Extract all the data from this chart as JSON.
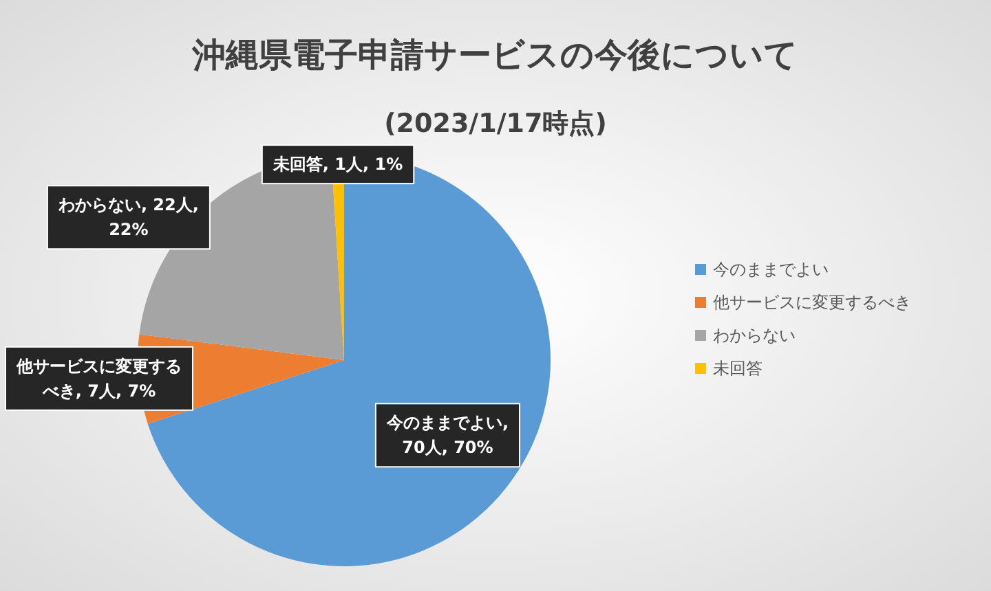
{
  "chart_data": {
    "type": "pie",
    "title": "沖縄県電子申請サービスの今後について",
    "subtitle": "(2023/1/17時点)",
    "categories": [
      "今のままでよい",
      "他サービスに変更するべき",
      "わからない",
      "未回答"
    ],
    "values": [
      70,
      7,
      22,
      1
    ],
    "colors": [
      "#5b9bd5",
      "#ed7d31",
      "#a5a5a5",
      "#ffc000"
    ],
    "value_labels": [
      "今のままでよい, 70人, 70%",
      "他サービスに変更するべき, 7人, 7%",
      "わからない, 22人, 22%",
      "未回答, 1人, 1%"
    ],
    "legend": "right"
  }
}
